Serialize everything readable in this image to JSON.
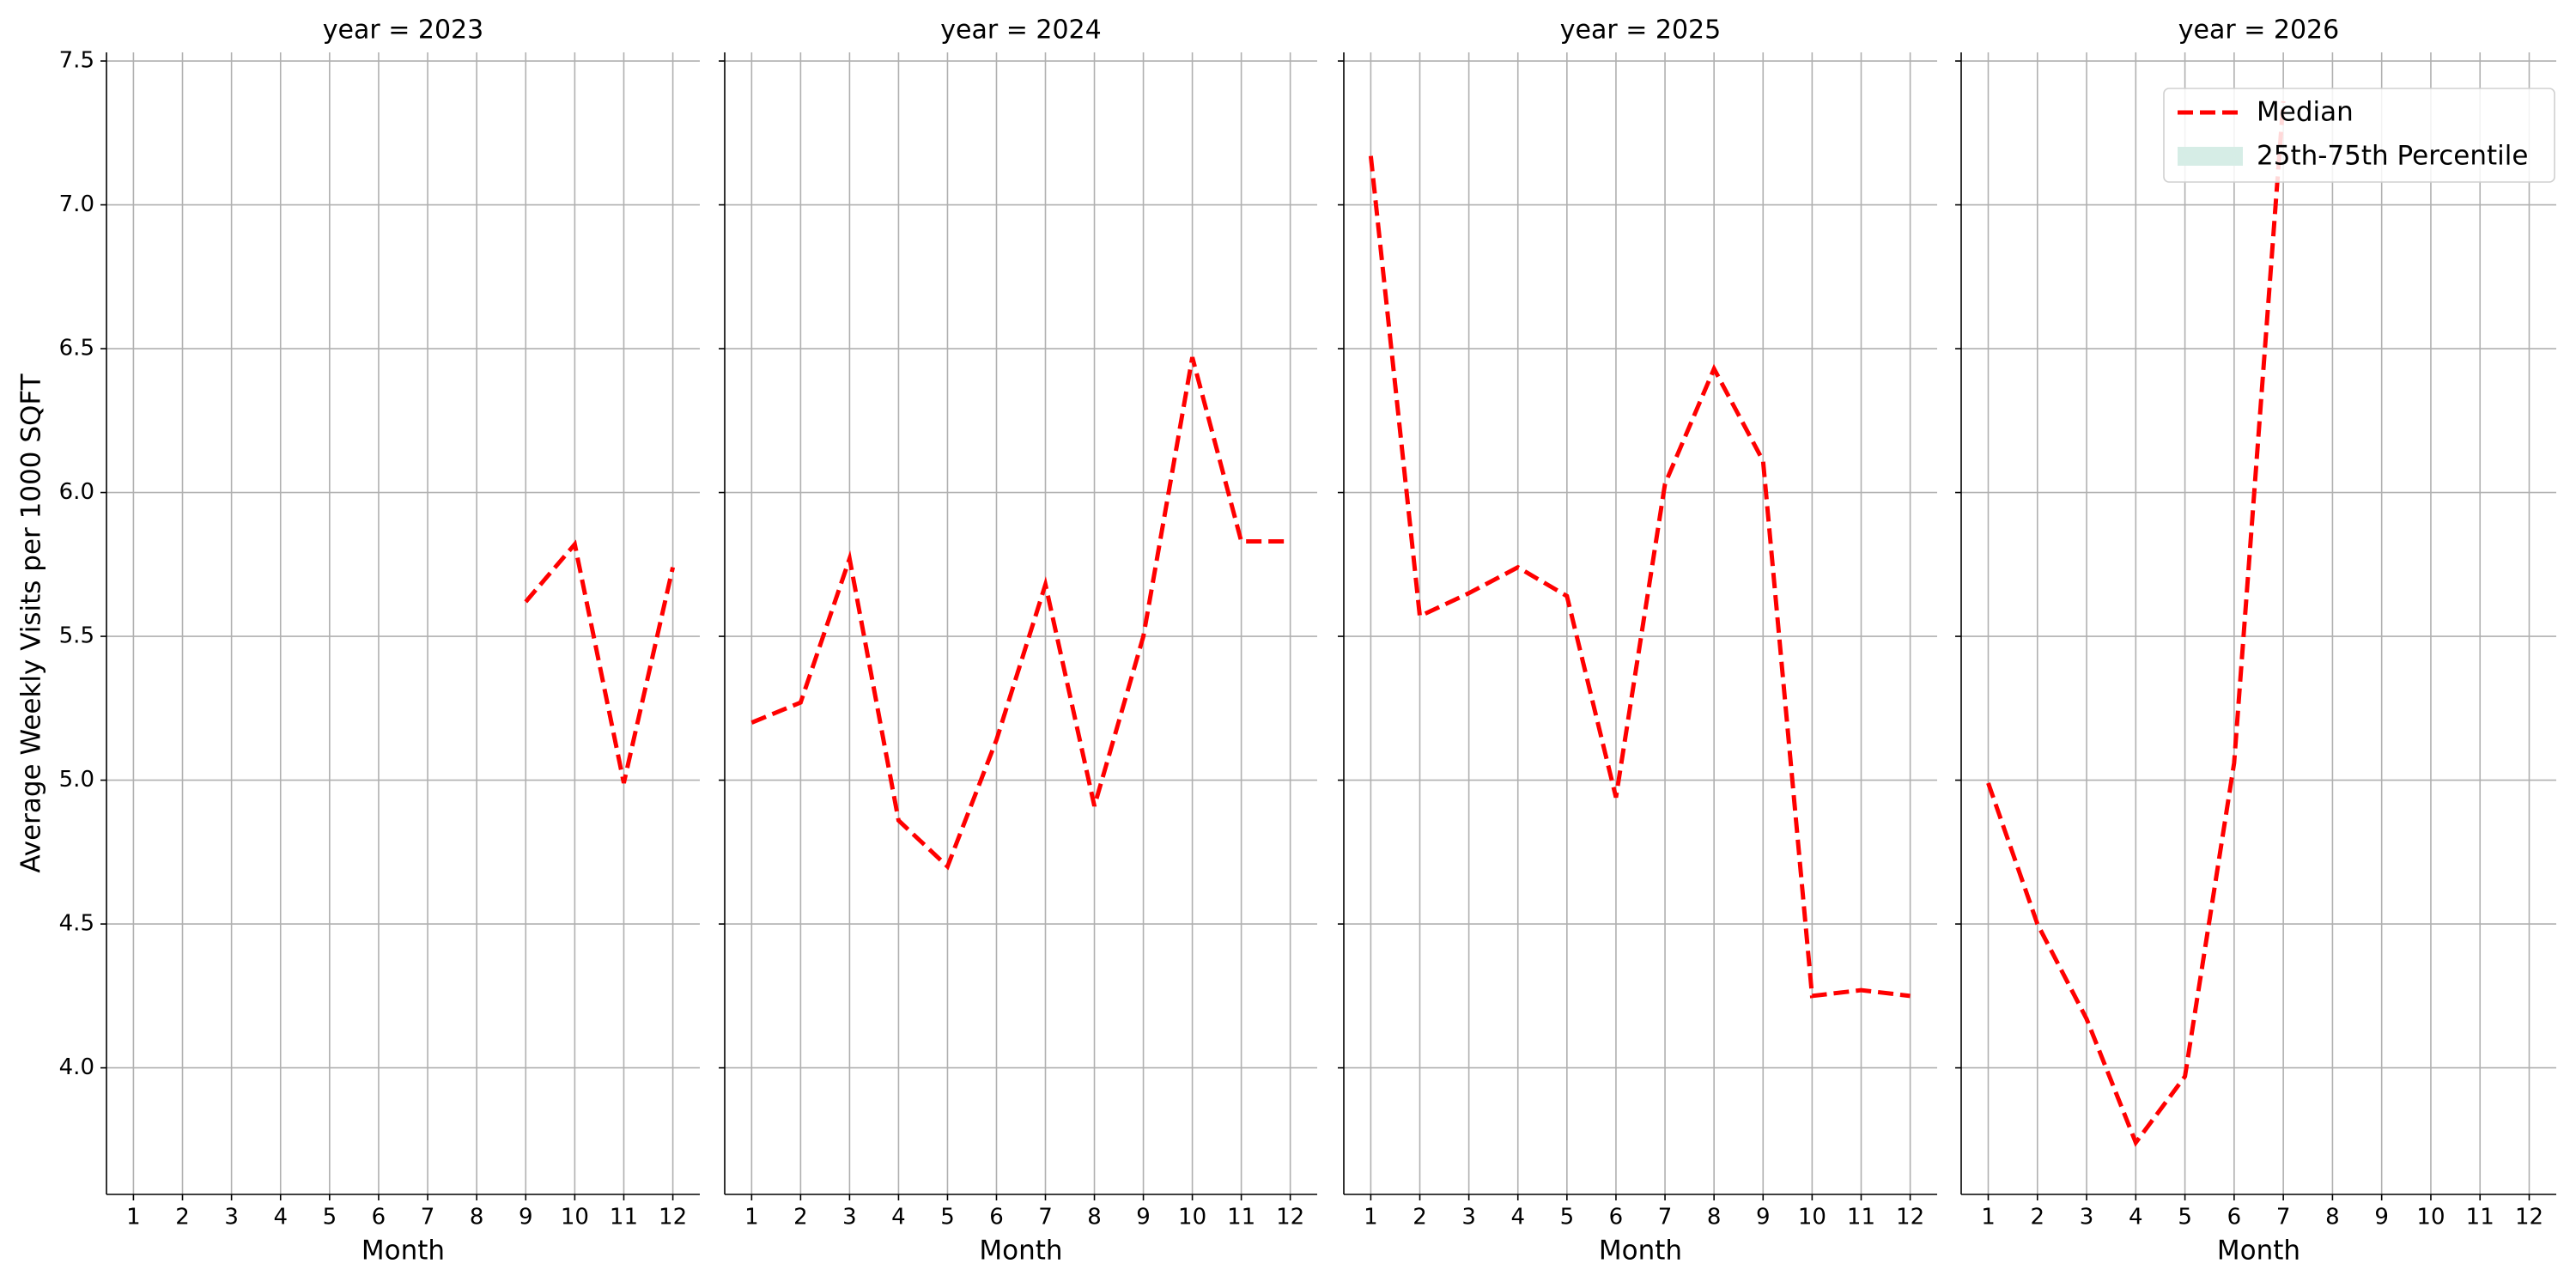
{
  "chart_data": [
    {
      "type": "line",
      "title": "year = 2023",
      "xlabel": "Month",
      "ylabel": "Average Weekly Visits per 1000 SQFT",
      "grid": true,
      "x": [
        1,
        2,
        3,
        4,
        5,
        6,
        7,
        8,
        9,
        10,
        11,
        12
      ],
      "xlim": [
        0.45,
        12.55
      ],
      "xticks": [
        1,
        2,
        3,
        4,
        5,
        6,
        7,
        8,
        9,
        10,
        11,
        12
      ],
      "ylim": [
        3.56,
        7.53
      ],
      "yticks": [
        {
          "value": 4.0,
          "label": "4.0"
        },
        {
          "value": 4.5,
          "label": "4.5"
        },
        {
          "value": 5.0,
          "label": "5.0"
        },
        {
          "value": 5.5,
          "label": "5.5"
        },
        {
          "value": 6.0,
          "label": "6.0"
        },
        {
          "value": 6.5,
          "label": "6.5"
        },
        {
          "value": 7.0,
          "label": "7.0"
        },
        {
          "value": 7.5,
          "label": "7.5"
        }
      ],
      "series": [
        {
          "color": "#ff0000",
          "values": [
            null,
            null,
            null,
            null,
            null,
            null,
            null,
            null,
            5.62,
            5.82,
            4.99,
            5.74
          ]
        }
      ]
    },
    {
      "type": "line",
      "title": "year = 2024",
      "xlabel": "Month",
      "grid": true,
      "x": [
        1,
        2,
        3,
        4,
        5,
        6,
        7,
        8,
        9,
        10,
        11,
        12
      ],
      "xlim": [
        0.45,
        12.55
      ],
      "xticks": [
        1,
        2,
        3,
        4,
        5,
        6,
        7,
        8,
        9,
        10,
        11,
        12
      ],
      "series": [
        {
          "color": "#ff0000",
          "values": [
            5.2,
            5.27,
            5.77,
            4.86,
            4.7,
            5.14,
            5.68,
            4.91,
            5.5,
            6.47,
            5.83,
            5.83
          ]
        }
      ]
    },
    {
      "type": "line",
      "title": "year = 2025",
      "xlabel": "Month",
      "grid": true,
      "x": [
        1,
        2,
        3,
        4,
        5,
        6,
        7,
        8,
        9,
        10,
        11,
        12
      ],
      "xlim": [
        0.45,
        12.55
      ],
      "xticks": [
        1,
        2,
        3,
        4,
        5,
        6,
        7,
        8,
        9,
        10,
        11,
        12
      ],
      "series": [
        {
          "color": "#ff0000",
          "values": [
            7.17,
            5.57,
            5.65,
            5.74,
            5.64,
            4.94,
            6.03,
            6.43,
            6.11,
            4.25,
            4.27,
            4.25
          ]
        }
      ]
    },
    {
      "type": "line",
      "title": "year = 2026",
      "xlabel": "Month",
      "grid": true,
      "legend": "upper right",
      "x": [
        1,
        2,
        3,
        4,
        5,
        6,
        7,
        8,
        9,
        10,
        11,
        12
      ],
      "xlim": [
        0.45,
        12.55
      ],
      "xticks": [
        1,
        2,
        3,
        4,
        5,
        6,
        7,
        8,
        9,
        10,
        11,
        12
      ],
      "series": [
        {
          "name": "Median",
          "color": "#ff0000",
          "values": [
            4.99,
            4.5,
            4.17,
            3.74,
            3.97,
            5.06,
            7.36,
            null,
            null,
            null,
            null,
            null
          ]
        }
      ],
      "band": {
        "name": "25th-75th Percentile",
        "color": "#d6ede6"
      }
    }
  ]
}
